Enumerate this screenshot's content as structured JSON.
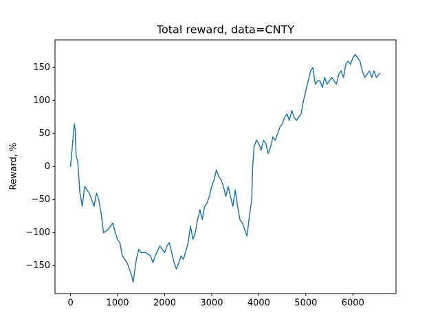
{
  "chart_data": {
    "type": "line",
    "title": "Total reward, data=CNTY",
    "ylabel": "Reward, %",
    "x": [
      0,
      50,
      80,
      100,
      120,
      150,
      200,
      250,
      300,
      400,
      450,
      500,
      550,
      600,
      650,
      700,
      800,
      900,
      950,
      1000,
      1050,
      1100,
      1150,
      1200,
      1300,
      1330,
      1400,
      1450,
      1500,
      1600,
      1700,
      1750,
      1800,
      1900,
      1950,
      2000,
      2050,
      2100,
      2150,
      2200,
      2250,
      2300,
      2350,
      2400,
      2500,
      2550,
      2600,
      2650,
      2700,
      2750,
      2800,
      2850,
      2900,
      2950,
      3000,
      3050,
      3100,
      3150,
      3200,
      3250,
      3300,
      3350,
      3400,
      3450,
      3500,
      3550,
      3600,
      3650,
      3700,
      3750,
      3800,
      3850,
      3870,
      3900,
      3950,
      4000,
      4050,
      4100,
      4150,
      4200,
      4250,
      4300,
      4350,
      4400,
      4450,
      4500,
      4550,
      4600,
      4650,
      4700,
      4750,
      4800,
      4850,
      4900,
      4950,
      5000,
      5050,
      5100,
      5150,
      5200,
      5250,
      5300,
      5350,
      5400,
      5450,
      5500,
      5550,
      5600,
      5650,
      5700,
      5750,
      5800,
      5850,
      5900,
      5950,
      6000,
      6050,
      6100,
      6150,
      6200,
      6250,
      6300,
      6350,
      6400,
      6450,
      6500,
      6550,
      6586
    ],
    "series": [
      {
        "name": "reward",
        "color": "#1f77b4",
        "values": [
          0,
          40,
          65,
          55,
          15,
          10,
          -40,
          -60,
          -30,
          -40,
          -50,
          -60,
          -40,
          -50,
          -70,
          -100,
          -95,
          -85,
          -100,
          -110,
          -115,
          -135,
          -140,
          -145,
          -165,
          -175,
          -140,
          -125,
          -130,
          -130,
          -135,
          -145,
          -135,
          -120,
          -125,
          -130,
          -120,
          -115,
          -130,
          -145,
          -155,
          -145,
          -135,
          -140,
          -115,
          -90,
          -110,
          -100,
          -80,
          -65,
          -80,
          -60,
          -55,
          -45,
          -30,
          -20,
          -5,
          -15,
          -20,
          -30,
          -45,
          -30,
          -45,
          -60,
          -35,
          -60,
          -80,
          -85,
          -95,
          -105,
          -75,
          -50,
          0,
          30,
          40,
          35,
          25,
          40,
          35,
          20,
          30,
          45,
          40,
          50,
          60,
          65,
          75,
          80,
          70,
          85,
          75,
          70,
          75,
          80,
          100,
          115,
          130,
          145,
          150,
          125,
          130,
          130,
          120,
          135,
          125,
          130,
          135,
          130,
          125,
          140,
          145,
          135,
          155,
          160,
          155,
          165,
          170,
          165,
          160,
          145,
          135,
          140,
          145,
          135,
          145,
          135,
          140,
          142
        ]
      }
    ],
    "xlim": [
      -330,
      6916
    ],
    "ylim": [
      -192,
      192
    ],
    "xticks": [
      0,
      1000,
      2000,
      3000,
      4000,
      5000,
      6000
    ],
    "yticks": [
      {
        "value": -150,
        "label": "−150"
      },
      {
        "value": -100,
        "label": "−100"
      },
      {
        "value": -50,
        "label": "−50"
      },
      0,
      50,
      100,
      150
    ]
  }
}
